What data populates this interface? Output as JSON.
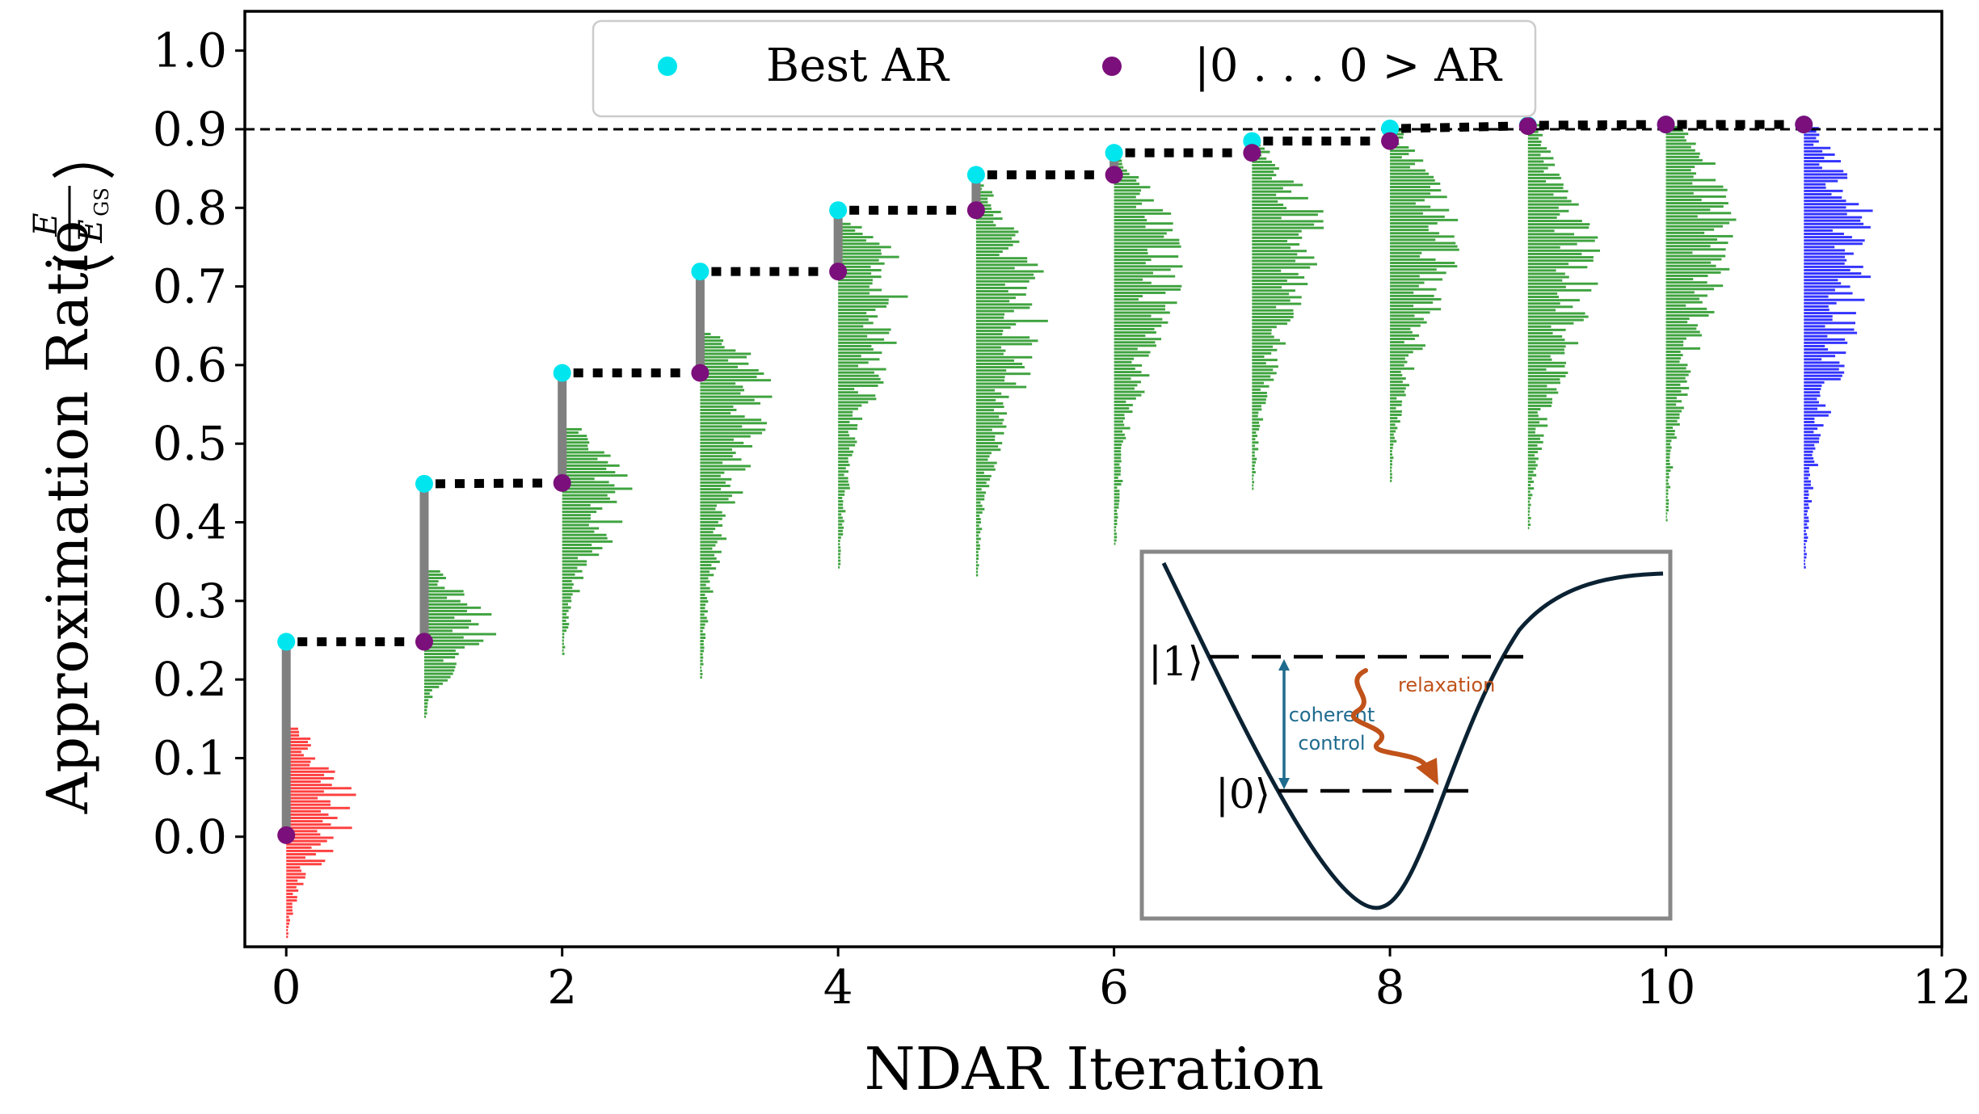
{
  "chart_data": {
    "type": "scatter",
    "title": "",
    "xlabel": "NDAR Iteration",
    "ylabel_text": "Approximation Ratio",
    "ylabel_frac": {
      "numerator": "E",
      "denominator": "E",
      "denominator_sub": "GS"
    },
    "xlim": [
      -0.3,
      12
    ],
    "ylim": [
      -0.14,
      1.05
    ],
    "xticks": [
      0,
      2,
      4,
      6,
      8,
      10,
      12
    ],
    "xtick_labels": [
      "0",
      "2",
      "4",
      "6",
      "8",
      "10",
      "12"
    ],
    "yticks": [
      0.0,
      0.1,
      0.2,
      0.3,
      0.4,
      0.5,
      0.6,
      0.7,
      0.8,
      0.9,
      1.0
    ],
    "ytick_labels": [
      "0.0",
      "0.1",
      "0.2",
      "0.3",
      "0.4",
      "0.5",
      "0.6",
      "0.7",
      "0.8",
      "0.9",
      "1.0"
    ],
    "threshold_line": {
      "y": 0.9,
      "style": "dashed",
      "color": "#000000"
    },
    "legend": {
      "placement": "top-center",
      "entries": [
        {
          "label": "Best AR",
          "color": "#00e5ee"
        },
        {
          "label": "|0 . . . 0 >  AR",
          "color": "#7b0f7b"
        }
      ]
    },
    "series": [
      {
        "name": "Best AR",
        "color": "#00e5ee",
        "x": [
          0,
          1,
          2,
          3,
          4,
          5,
          6,
          7,
          8,
          9,
          10,
          11
        ],
        "y": [
          0.248,
          0.449,
          0.59,
          0.719,
          0.797,
          0.842,
          0.87,
          0.885,
          0.901,
          0.905,
          0.906,
          0.906
        ]
      },
      {
        "name": "|0...0> AR",
        "color": "#7b0f7b",
        "x": [
          0,
          1,
          2,
          3,
          4,
          5,
          6,
          7,
          8,
          9,
          10,
          11
        ],
        "y": [
          0.002,
          0.248,
          0.45,
          0.59,
          0.719,
          0.797,
          0.842,
          0.87,
          0.885,
          0.904,
          0.906,
          0.906
        ]
      }
    ],
    "histograms": [
      {
        "iteration": 0,
        "color": "#ff4040",
        "y_min": -0.13,
        "y_max": 0.14,
        "peak_y": 0.04,
        "max_width": 0.45
      },
      {
        "iteration": 1,
        "color": "#3fa33f",
        "y_min": 0.15,
        "y_max": 0.34,
        "peak_y": 0.26,
        "max_width": 0.45
      },
      {
        "iteration": 2,
        "color": "#3fa33f",
        "y_min": 0.23,
        "y_max": 0.52,
        "peak_y": 0.44,
        "max_width": 0.45
      },
      {
        "iteration": 3,
        "color": "#3fa33f",
        "y_min": 0.2,
        "y_max": 0.64,
        "peak_y": 0.58,
        "max_width": 0.45
      },
      {
        "iteration": 4,
        "color": "#3fa33f",
        "y_min": 0.34,
        "y_max": 0.78,
        "peak_y": 0.72,
        "max_width": 0.45
      },
      {
        "iteration": 5,
        "color": "#3fa33f",
        "y_min": 0.33,
        "y_max": 0.83,
        "peak_y": 0.69,
        "max_width": 0.45
      },
      {
        "iteration": 6,
        "color": "#3fa33f",
        "y_min": 0.37,
        "y_max": 0.86,
        "peak_y": 0.76,
        "max_width": 0.45
      },
      {
        "iteration": 7,
        "color": "#3fa33f",
        "y_min": 0.44,
        "y_max": 0.88,
        "peak_y": 0.78,
        "max_width": 0.45
      },
      {
        "iteration": 8,
        "color": "#3fa33f",
        "y_min": 0.45,
        "y_max": 0.9,
        "peak_y": 0.77,
        "max_width": 0.45
      },
      {
        "iteration": 9,
        "color": "#3fa33f",
        "y_min": 0.39,
        "y_max": 0.91,
        "peak_y": 0.73,
        "max_width": 0.45
      },
      {
        "iteration": 10,
        "color": "#3fa33f",
        "y_min": 0.4,
        "y_max": 0.91,
        "peak_y": 0.8,
        "max_width": 0.45
      },
      {
        "iteration": 11,
        "color": "#3333ff",
        "y_min": 0.34,
        "y_max": 0.91,
        "peak_y": 0.77,
        "max_width": 0.45
      }
    ],
    "inset": {
      "level_labels": [
        "|1⟩",
        "|0⟩"
      ],
      "arrow_label_lines": [
        "coherent",
        "control"
      ],
      "relaxation_label": "relaxation",
      "colors": {
        "curve": "#0b2233",
        "control": "#1f6b8e",
        "relaxation": "#c0521a",
        "frame": "#888888"
      }
    }
  }
}
